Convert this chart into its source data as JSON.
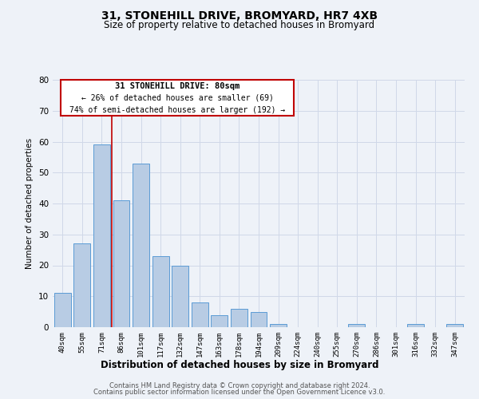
{
  "title": "31, STONEHILL DRIVE, BROMYARD, HR7 4XB",
  "subtitle": "Size of property relative to detached houses in Bromyard",
  "xlabel": "Distribution of detached houses by size in Bromyard",
  "ylabel": "Number of detached properties",
  "bar_labels": [
    "40sqm",
    "55sqm",
    "71sqm",
    "86sqm",
    "101sqm",
    "117sqm",
    "132sqm",
    "147sqm",
    "163sqm",
    "178sqm",
    "194sqm",
    "209sqm",
    "224sqm",
    "240sqm",
    "255sqm",
    "270sqm",
    "286sqm",
    "301sqm",
    "316sqm",
    "332sqm",
    "347sqm"
  ],
  "bar_values": [
    11,
    27,
    59,
    41,
    53,
    23,
    20,
    8,
    4,
    6,
    5,
    1,
    0,
    0,
    0,
    1,
    0,
    0,
    1,
    0,
    1
  ],
  "bar_color": "#b8cce4",
  "bar_edge_color": "#5b9bd5",
  "grid_color": "#d0d8e8",
  "bg_color": "#eef2f8",
  "marker_bar_index": 3,
  "marker_color": "#c00000",
  "ylim": [
    0,
    80
  ],
  "yticks": [
    0,
    10,
    20,
    30,
    40,
    50,
    60,
    70,
    80
  ],
  "annotation_title": "31 STONEHILL DRIVE: 80sqm",
  "annotation_line1": "← 26% of detached houses are smaller (69)",
  "annotation_line2": "74% of semi-detached houses are larger (192) →",
  "annotation_box_color": "#ffffff",
  "annotation_border_color": "#c00000",
  "footer_line1": "Contains HM Land Registry data © Crown copyright and database right 2024.",
  "footer_line2": "Contains public sector information licensed under the Open Government Licence v3.0."
}
